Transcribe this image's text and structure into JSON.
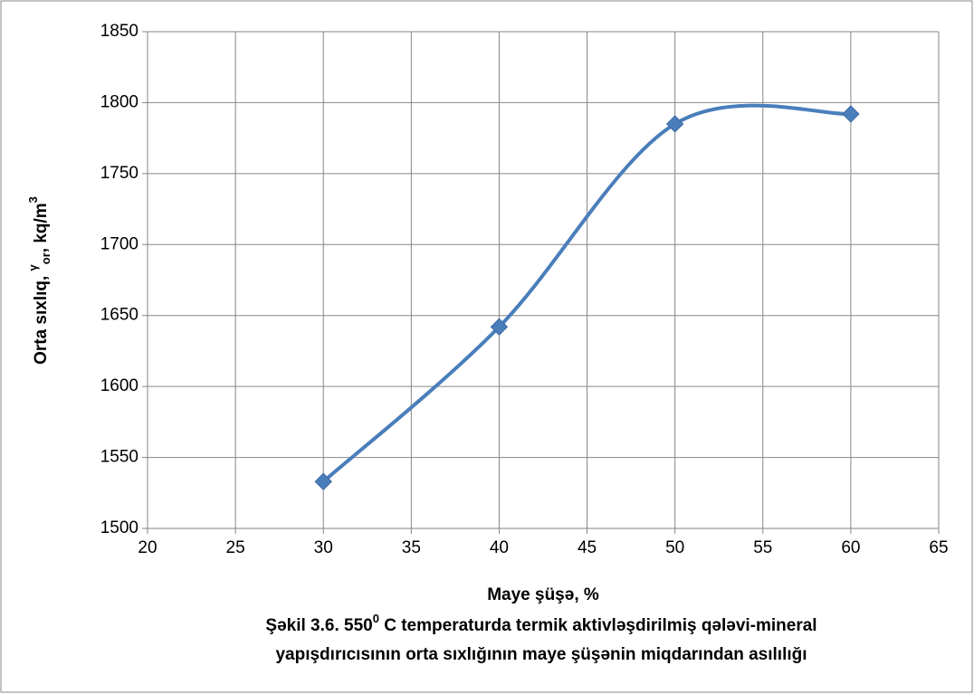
{
  "chart_data": {
    "type": "line",
    "x": [
      30,
      40,
      50,
      60
    ],
    "series": [
      {
        "name": "Orta sıxlıq",
        "color": "#4a7ebb",
        "values": [
          1533,
          1642,
          1785,
          1792
        ]
      }
    ],
    "xlim": [
      20,
      65
    ],
    "xticks": [
      20,
      25,
      30,
      35,
      40,
      45,
      50,
      55,
      60,
      65
    ],
    "ylim": [
      1500,
      1850
    ],
    "yticks": [
      1500,
      1550,
      1600,
      1650,
      1700,
      1750,
      1800,
      1850
    ],
    "grid": true,
    "smooth": true,
    "xlabel": "Maye şüşə, %",
    "ylabel": {
      "main": "Orta sıxlıq, ",
      "sup": "γ",
      "sub": "or",
      "rest": ", kq/m",
      "exp": "3"
    },
    "caption": {
      "start": "Şəkil 3.6. 550",
      "sup": "0",
      "end": " C temperaturda termik aktivləşdirilmiş qələvi-mineral",
      "line2": "yapışdırıcısının orta sıxlığının maye şüşənin miqdarından asılılığı"
    }
  }
}
